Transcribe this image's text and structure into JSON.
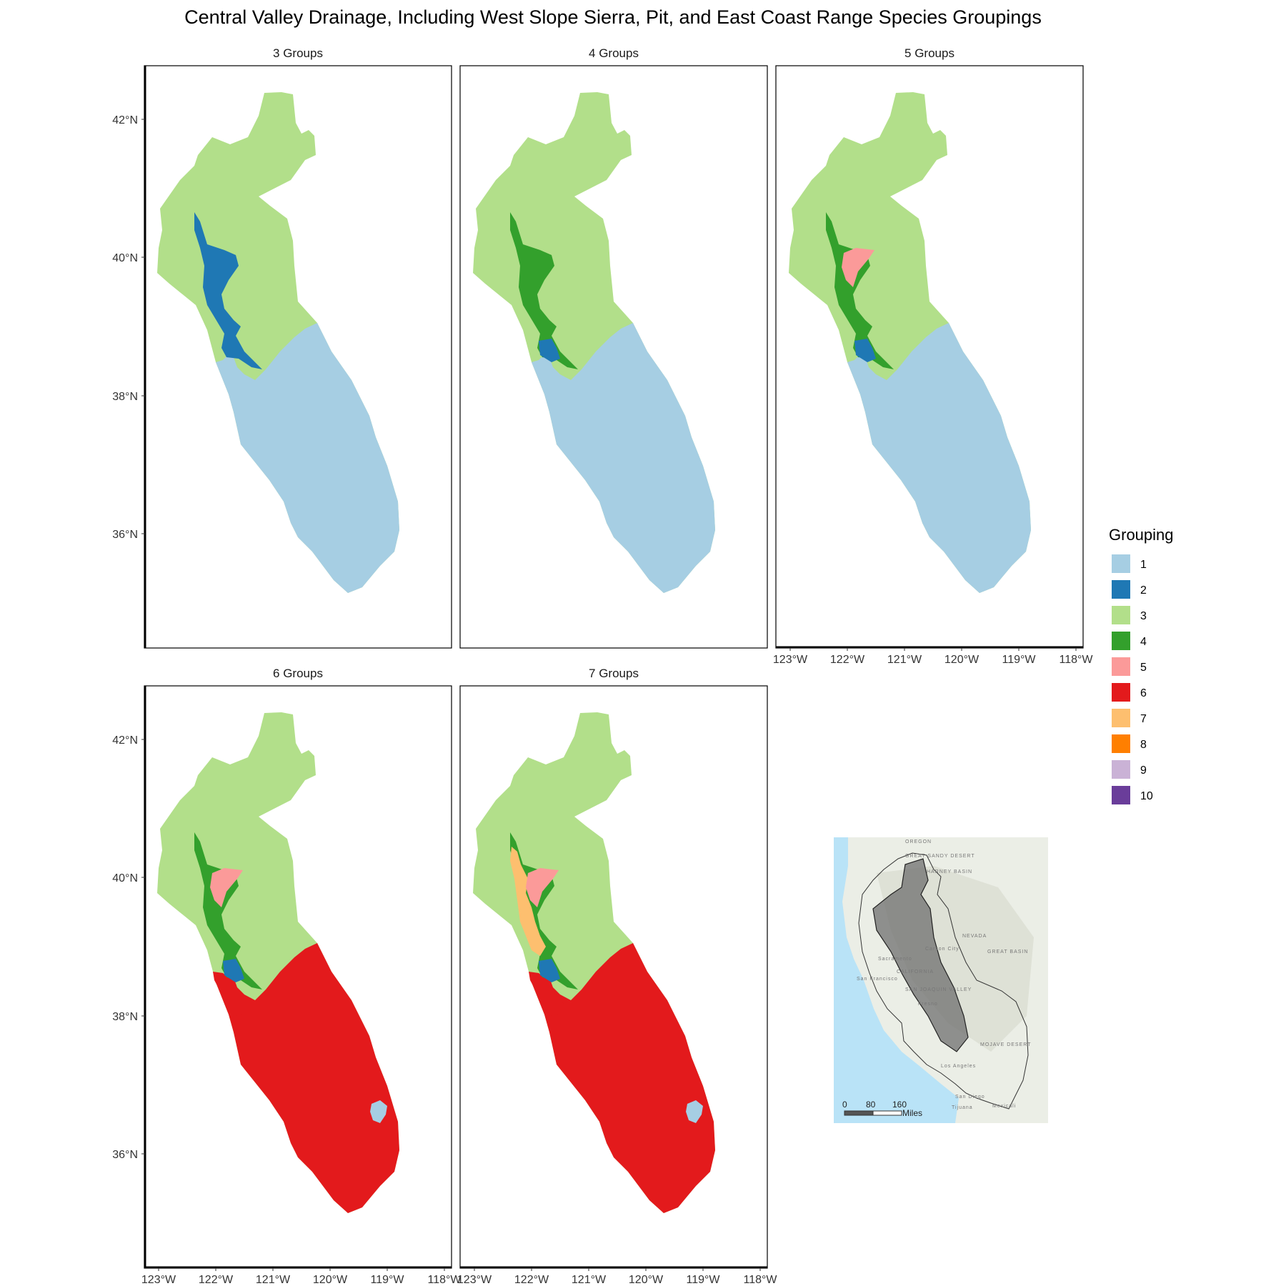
{
  "title": "Central Valley Drainage, Including West Slope Sierra, Pit, and East Coast Range Species Groupings",
  "panels": [
    {
      "label": "3 Groups",
      "max_groups": 3
    },
    {
      "label": "4 Groups",
      "max_groups": 4
    },
    {
      "label": "5 Groups",
      "max_groups": 5
    },
    {
      "label": "6 Groups",
      "max_groups": 6
    },
    {
      "label": "7 Groups",
      "max_groups": 7
    }
  ],
  "axes": {
    "y_ticks": [
      "42°N",
      "40°N",
      "38°N",
      "36°N"
    ],
    "x_ticks": [
      "123°W",
      "122°W",
      "121°W",
      "120°W",
      "119°W",
      "118°W"
    ]
  },
  "legend": {
    "title": "Grouping",
    "items": [
      {
        "label": "1",
        "color": "#a6cee3"
      },
      {
        "label": "2",
        "color": "#1f78b4"
      },
      {
        "label": "3",
        "color": "#b2df8a"
      },
      {
        "label": "4",
        "color": "#33a02c"
      },
      {
        "label": "5",
        "color": "#fb9a99"
      },
      {
        "label": "6",
        "color": "#e31a1c"
      },
      {
        "label": "7",
        "color": "#fdbf6f"
      },
      {
        "label": "8",
        "color": "#ff7f00"
      },
      {
        "label": "9",
        "color": "#cab2d6"
      },
      {
        "label": "10",
        "color": "#6a3d9a"
      }
    ]
  },
  "inset": {
    "scale_labels": [
      "0",
      "80",
      "160"
    ],
    "scale_unit": "Miles",
    "place_labels": [
      "OREGON",
      "GREAT SANDY DESERT",
      "HARNEY BASIN",
      "NEVADA",
      "Carson City",
      "GREAT BASIN",
      "Sacramento",
      "San Francisco",
      "CALIFORNIA",
      "SAN JOAQUIN VALLEY",
      "Fresno",
      "MOJAVE DESERT",
      "Los Angeles",
      "San Diego",
      "Tijuana",
      "Mexicali"
    ]
  }
}
